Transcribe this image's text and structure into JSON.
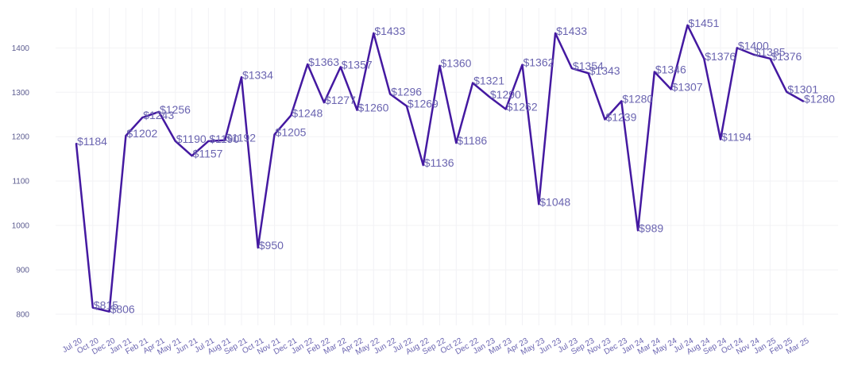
{
  "chart_data": {
    "type": "line",
    "title": "",
    "xlabel": "",
    "ylabel": "",
    "grid": true,
    "ylim": [
      775,
      1490
    ],
    "y_ticks": [
      800,
      900,
      1000,
      1100,
      1200,
      1300,
      1400
    ],
    "x_ticks": [
      "Jul 20",
      "Oct 20",
      "Dec 20",
      "Jan 21",
      "Feb 21",
      "Apr 21",
      "May 21",
      "Jun 21",
      "Jul 21",
      "Aug 21",
      "Sep 21",
      "Oct 21",
      "Nov 21",
      "Dec 21",
      "Jan 22",
      "Feb 22",
      "Mar 22",
      "Apr 22",
      "May 22",
      "Jun 22",
      "Jul 22",
      "Aug 22",
      "Sep 22",
      "Oct 22",
      "Dec 22",
      "Jan 23",
      "Mar 23",
      "Apr 23",
      "May 23",
      "Jun 23",
      "Jul 23",
      "Sep 23",
      "Nov 23",
      "Dec 23",
      "Jan 24",
      "Mar 24",
      "May 24",
      "Jul 24",
      "Aug 24",
      "Sep 24",
      "Oct 24",
      "Nov 24",
      "Jan 25",
      "Feb 25",
      "Mar 25"
    ],
    "line_color": "#4419a1",
    "points": [
      {
        "x": "Jul 20",
        "y": 1184,
        "label": "$1184"
      },
      {
        "x": "Oct 20",
        "y": 815,
        "label": "$815"
      },
      {
        "x": "Dec 20",
        "y": 806,
        "label": "$806"
      },
      {
        "x": "Jan 21",
        "y": 1202,
        "label": "$1202"
      },
      {
        "x": "Feb 21",
        "y": 1243,
        "label": "$1243"
      },
      {
        "x": "Apr 21",
        "y": 1256,
        "label": "$1256"
      },
      {
        "x": "May 21",
        "y": 1190,
        "label": "$1190"
      },
      {
        "x": "Jun 21",
        "y": 1157,
        "label": "$1157"
      },
      {
        "x": "Jul 21",
        "y": 1190,
        "label": "$1190"
      },
      {
        "x": "Aug 21",
        "y": 1192,
        "label": "$1192"
      },
      {
        "x": "Sep 21",
        "y": 1334,
        "label": "$1334"
      },
      {
        "x": "Oct 21",
        "y": 950,
        "label": "$950"
      },
      {
        "x": "Nov 21",
        "y": 1205,
        "label": "$1205"
      },
      {
        "x": "Dec 21",
        "y": 1248,
        "label": "$1248"
      },
      {
        "x": "Jan 22",
        "y": 1363,
        "label": "$1363"
      },
      {
        "x": "Feb 22",
        "y": 1277,
        "label": "$1277"
      },
      {
        "x": "Mar 22",
        "y": 1357,
        "label": "$1357"
      },
      {
        "x": "Apr 22",
        "y": 1260,
        "label": "$1260"
      },
      {
        "x": "May 22",
        "y": 1433,
        "label": "$1433"
      },
      {
        "x": "Jun 22",
        "y": 1296,
        "label": "$1296"
      },
      {
        "x": "Jul 22",
        "y": 1269,
        "label": "$1269"
      },
      {
        "x": "Aug 22",
        "y": 1136,
        "label": "$1136"
      },
      {
        "x": "Sep 22",
        "y": 1360,
        "label": "$1360"
      },
      {
        "x": "Oct 22",
        "y": 1186,
        "label": "$1186"
      },
      {
        "x": "Dec 22",
        "y": 1321,
        "label": "$1321"
      },
      {
        "x": "Jan 23",
        "y": 1290,
        "label": "$1290"
      },
      {
        "x": "Mar 23",
        "y": 1262,
        "label": "$1262"
      },
      {
        "x": "Apr 23",
        "y": 1362,
        "label": "$1362"
      },
      {
        "x": "May 23",
        "y": 1048,
        "label": "$1048"
      },
      {
        "x": "Jun 23",
        "y": 1433,
        "label": "$1433"
      },
      {
        "x": "Jul 23",
        "y": 1354,
        "label": "$1354"
      },
      {
        "x": "Sep 23",
        "y": 1343,
        "label": "$1343"
      },
      {
        "x": "Nov 23",
        "y": 1239,
        "label": "$1239"
      },
      {
        "x": "Dec 23",
        "y": 1280,
        "label": "$1280"
      },
      {
        "x": "Jan 24",
        "y": 989,
        "label": "$989"
      },
      {
        "x": "Mar 24",
        "y": 1346,
        "label": "$1346"
      },
      {
        "x": "May 24",
        "y": 1307,
        "label": "$1307"
      },
      {
        "x": "Jul 24",
        "y": 1451,
        "label": "$1451"
      },
      {
        "x": "Aug 24",
        "y": 1376,
        "label": "$1376"
      },
      {
        "x": "Sep 24",
        "y": 1194,
        "label": "$1194"
      },
      {
        "x": "Oct 24",
        "y": 1400,
        "label": "$1400"
      },
      {
        "x": "Nov 24",
        "y": 1385,
        "label": "$1385"
      },
      {
        "x": "Jan 25",
        "y": 1376,
        "label": "$1376"
      },
      {
        "x": "Feb 25",
        "y": 1301,
        "label": "$1301"
      },
      {
        "x": "Mar 25",
        "y": 1280,
        "label": "$1280"
      }
    ]
  }
}
